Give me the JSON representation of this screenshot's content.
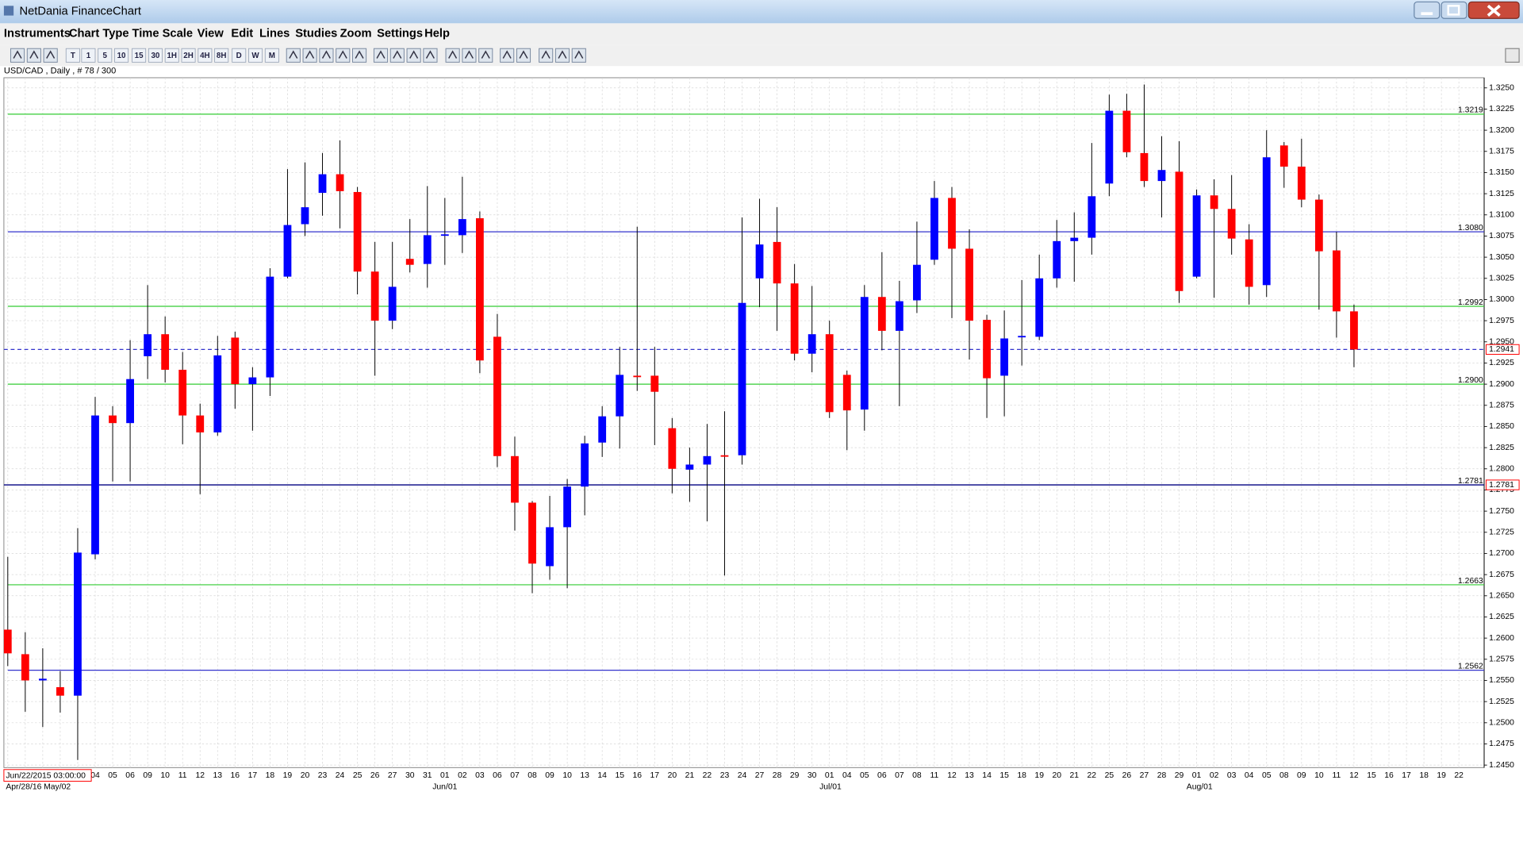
{
  "window": {
    "title": "NetDania FinanceChart"
  },
  "menu": [
    "Instruments",
    "Chart Type",
    "Time Scale",
    "View",
    "Edit",
    "Lines",
    "Studies",
    "Zoom",
    "Settings",
    "Help"
  ],
  "toolbar": {
    "timeframes": [
      "T",
      "1",
      "5",
      "10",
      "15",
      "30",
      "1H",
      "2H",
      "4H",
      "8H",
      "D",
      "W",
      "M"
    ]
  },
  "chart_data": {
    "type": "candlestick",
    "title": "USD/CAD , Daily , # 78 / 300",
    "cursor_label": "Jun/22/2015 03:00:00",
    "period_labels": [
      "Apr/28/16",
      "May/02",
      "Jun/01",
      "Jul/01",
      "Aug/01"
    ],
    "categories": [
      null,
      null,
      null,
      null,
      null,
      "04",
      "05",
      "06",
      "09",
      "10",
      "11",
      "12",
      "13",
      "16",
      "17",
      "18",
      "19",
      "20",
      "23",
      "24",
      "25",
      "26",
      "27",
      "30",
      "31",
      "01",
      "02",
      "03",
      "06",
      "07",
      "08",
      "09",
      "10",
      "13",
      "14",
      "15",
      "16",
      "17",
      "20",
      "21",
      "22",
      "23",
      "24",
      "27",
      "28",
      "29",
      "30",
      "01",
      "04",
      "05",
      "06",
      "07",
      "08",
      "11",
      "12",
      "13",
      "14",
      "15",
      "18",
      "19",
      "20",
      "21",
      "22",
      "25",
      "26",
      "27",
      "28",
      "29",
      "01",
      "02",
      "03",
      "04",
      "05",
      "08",
      "09",
      "10",
      "11",
      "12",
      "15",
      "16",
      "17",
      "18",
      "19",
      "22"
    ],
    "open": [
      1.261,
      1.2581,
      1.255,
      1.2542,
      1.2532,
      1.2699,
      1.2863,
      1.2854,
      1.2933,
      1.2959,
      1.2917,
      1.2863,
      1.2843,
      1.2955,
      1.29,
      1.2908,
      1.3027,
      1.3089,
      1.3126,
      1.3148,
      1.3127,
      1.3033,
      1.2975,
      1.3048,
      1.3042,
      1.3076,
      1.3076,
      1.3096,
      1.2956,
      1.2815,
      1.276,
      1.2685,
      1.2731,
      1.2779,
      1.2831,
      1.2862,
      1.291,
      1.291,
      1.2848,
      1.2799,
      1.2805,
      1.2816,
      1.2816,
      1.3025,
      1.3068,
      1.3019,
      1.2936,
      1.2959,
      1.2911,
      1.287,
      1.3003,
      1.2963,
      1.2999,
      1.3047,
      1.312,
      1.306,
      1.2976,
      1.291,
      1.2956,
      1.2956,
      1.3025,
      1.3069,
      1.3073,
      1.3137,
      1.3223,
      1.3173,
      1.314,
      1.3151,
      1.3027,
      1.3123,
      1.3107,
      1.3071,
      1.3017,
      1.3182,
      1.3157,
      1.3118,
      1.3058,
      1.2986,
      null,
      null,
      null,
      null,
      null,
      null
    ],
    "high": [
      1.2696,
      1.2607,
      1.2588,
      1.2561,
      1.273,
      1.2885,
      1.2874,
      1.2952,
      1.3017,
      1.298,
      1.2938,
      1.2877,
      1.2957,
      1.2962,
      1.292,
      1.3037,
      1.3154,
      1.3162,
      1.3173,
      1.3188,
      1.3133,
      1.3068,
      1.3068,
      1.3095,
      1.3134,
      1.312,
      1.3145,
      1.3104,
      1.2983,
      1.2838,
      1.2762,
      1.2768,
      1.2788,
      1.2839,
      1.2874,
      1.2944,
      1.3086,
      1.2944,
      1.286,
      1.2825,
      1.2853,
      1.2868,
      1.3097,
      1.3119,
      1.3109,
      1.3042,
      1.3016,
      1.2975,
      1.2916,
      1.3017,
      1.3056,
      1.3022,
      1.3092,
      1.314,
      1.3133,
      1.3083,
      1.2982,
      1.2987,
      1.3023,
      1.3053,
      1.3094,
      1.3103,
      1.3185,
      1.3242,
      1.3243,
      1.3254,
      1.3193,
      1.3187,
      1.313,
      1.3142,
      1.3147,
      1.3089,
      1.32,
      1.3186,
      1.319,
      1.3124,
      1.308,
      1.2994,
      null,
      null,
      null,
      null,
      null,
      null
    ],
    "low": [
      1.2567,
      1.2513,
      1.2495,
      1.2512,
      1.2456,
      1.2693,
      1.2785,
      1.2785,
      1.2906,
      1.2902,
      1.2829,
      1.277,
      1.2839,
      1.2871,
      1.2845,
      1.2886,
      1.3025,
      1.3075,
      1.3099,
      1.3084,
      1.3006,
      1.291,
      1.2965,
      1.3032,
      1.3014,
      1.3041,
      1.3055,
      1.2913,
      1.2802,
      1.2727,
      1.2653,
      1.2669,
      1.2659,
      1.2745,
      1.2814,
      1.2824,
      1.2892,
      1.2828,
      1.2771,
      1.2761,
      1.2738,
      1.2674,
      1.2805,
      1.2991,
      1.2963,
      1.2928,
      1.2914,
      1.286,
      1.2822,
      1.2845,
      1.294,
      1.2874,
      1.2984,
      1.3041,
      1.2978,
      1.2929,
      1.286,
      1.2862,
      1.2922,
      1.2952,
      1.3014,
      1.3021,
      1.3053,
      1.3122,
      1.3168,
      1.3133,
      1.3097,
      1.2996,
      1.3025,
      1.3002,
      1.3053,
      1.2994,
      1.3003,
      1.3132,
      1.3109,
      1.2988,
      1.2955,
      1.292,
      null,
      null,
      null,
      null,
      null,
      null
    ],
    "close": [
      1.2582,
      1.255,
      1.2552,
      1.2532,
      1.2701,
      1.2863,
      1.2854,
      1.2906,
      1.2959,
      1.2917,
      1.2863,
      1.2843,
      1.2934,
      1.29,
      1.2908,
      1.3027,
      1.3088,
      1.3109,
      1.3148,
      1.3128,
      1.3033,
      1.2975,
      1.3015,
      1.3041,
      1.3076,
      1.3077,
      1.3095,
      1.2928,
      1.2815,
      1.276,
      1.2688,
      1.2731,
      1.2779,
      1.283,
      1.2862,
      1.2911,
      1.2909,
      1.2891,
      1.28,
      1.2805,
      1.2815,
      1.2815,
      1.2996,
      1.3065,
      1.3019,
      1.2936,
      1.2959,
      1.2867,
      1.2869,
      1.3003,
      1.2963,
      1.2998,
      1.3041,
      1.312,
      1.306,
      1.2975,
      1.2907,
      1.2954,
      1.2957,
      1.3025,
      1.3069,
      1.3073,
      1.3122,
      1.3223,
      1.3174,
      1.314,
      1.3153,
      1.301,
      1.3123,
      1.3107,
      1.3072,
      1.3015,
      1.3168,
      1.3157,
      1.3118,
      1.3057,
      1.2986,
      1.2941,
      null,
      null,
      null,
      null,
      null,
      null
    ],
    "up_color": "#0000ff",
    "down_color": "#ff0000",
    "last_price": 1.2941,
    "last_price_color": "#3333cc",
    "levels": [
      {
        "value": 1.3219,
        "label": "1.3219",
        "color": "#33cc33"
      },
      {
        "value": 1.308,
        "label": "1.3080",
        "color": "#3333cc"
      },
      {
        "value": 1.2992,
        "label": "1.2992",
        "color": "#33cc33"
      },
      {
        "value": 1.29,
        "label": "1.2900",
        "color": "#33cc33"
      },
      {
        "value": 1.2781,
        "label": "1.2781",
        "color": "#000080"
      },
      {
        "value": 1.2663,
        "label": "1.2663",
        "color": "#33cc33"
      },
      {
        "value": 1.2562,
        "label": "1.2562",
        "color": "#3333cc"
      }
    ],
    "ylim": [
      1.2447,
      1.3262
    ],
    "yticks": [
      {
        "value": 1.245,
        "label": "1.2450"
      },
      1.2475,
      {
        "value": 1.25,
        "label": "1.2500"
      },
      1.2525,
      {
        "value": 1.255,
        "label": "1.2550"
      },
      1.2575,
      {
        "value": 1.26,
        "label": "1.2600"
      },
      1.2625,
      {
        "value": 1.265,
        "label": "1.2650"
      },
      1.2675,
      {
        "value": 1.27,
        "label": "1.2700"
      },
      1.2725,
      {
        "value": 1.275,
        "label": "1.2750"
      },
      1.2775,
      {
        "value": 1.28,
        "label": "1.2800"
      },
      1.2825,
      {
        "value": 1.285,
        "label": "1.2850"
      },
      1.2875,
      {
        "value": 1.29,
        "label": "1.2900"
      },
      1.2925,
      {
        "value": 1.295,
        "label": "1.2950"
      },
      1.2975,
      {
        "value": 1.3,
        "label": "1.3000"
      },
      1.3025,
      {
        "value": 1.305,
        "label": "1.3050"
      },
      1.3075,
      {
        "value": 1.31,
        "label": "1.3100"
      },
      1.3125,
      {
        "value": 1.315,
        "label": "1.3150"
      },
      1.3175,
      {
        "value": 1.32,
        "label": "1.3200"
      },
      1.3225,
      {
        "value": 1.325,
        "label": "1.3250"
      }
    ],
    "grid": true
  }
}
